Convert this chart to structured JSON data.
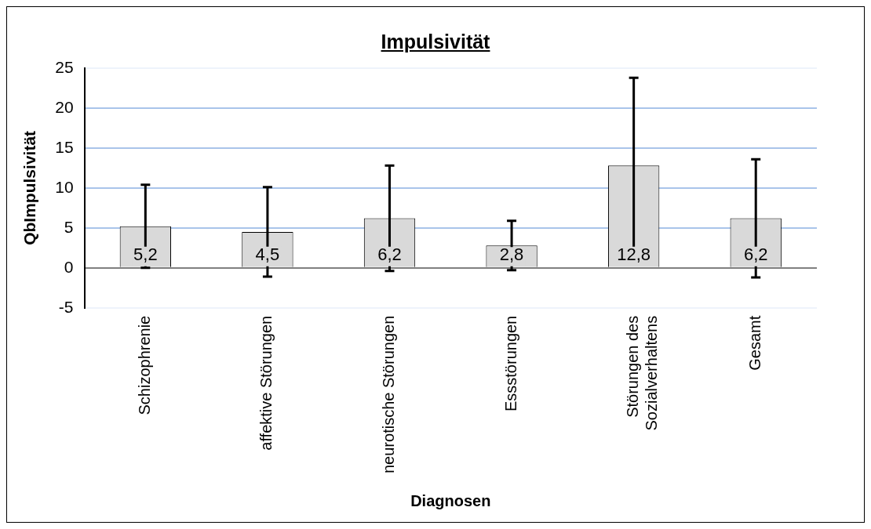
{
  "chart_data": {
    "type": "bar",
    "title": "Impulsivität",
    "xlabel": "Diagnosen",
    "ylabel": "QbImpulsivität",
    "categories": [
      "Schizophrenie",
      "affektive Störungen",
      "neurotische Störungen",
      "Essstörungen",
      "Störungen des Sozialverhaltens",
      "Gesamt"
    ],
    "values": [
      5.2,
      4.5,
      6.2,
      2.8,
      12.8,
      6.2
    ],
    "value_labels": [
      "5,2",
      "4,5",
      "6,2",
      "2,8",
      "12,8",
      "6,2"
    ],
    "errors": [
      5.2,
      5.6,
      6.6,
      3.1,
      11.0,
      7.4
    ],
    "color": "#d9d9d9",
    "ylim": [
      -5,
      25
    ],
    "yticks": [
      -5,
      0,
      5,
      10,
      15,
      20,
      25
    ],
    "grid": "y"
  }
}
